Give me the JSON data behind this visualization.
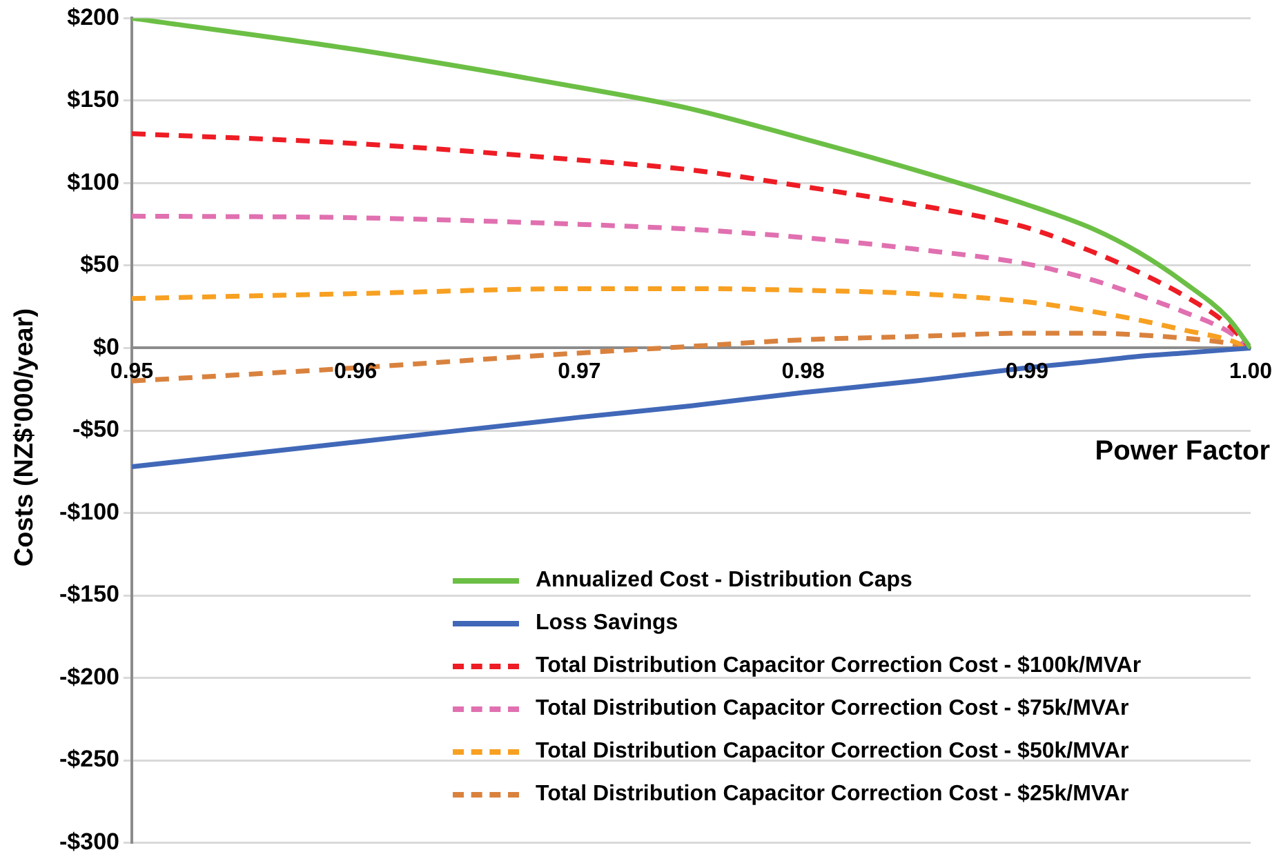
{
  "chart_data": {
    "type": "line",
    "xlabel": "Power Factor",
    "ylabel": "Costs (NZ$'000/year)",
    "x": [
      0.95,
      0.96,
      0.97,
      0.975,
      0.98,
      0.985,
      0.99,
      0.993,
      0.995,
      0.997,
      0.999,
      1.0
    ],
    "xlim": [
      0.95,
      1.0
    ],
    "xticks": [
      0.95,
      0.96,
      0.97,
      0.98,
      0.99,
      {
        "value": 1.0,
        "label": "1.00"
      }
    ],
    "ylim": [
      -300,
      200
    ],
    "yticks": [
      {
        "value": -300,
        "label": "-$300"
      },
      {
        "value": -250,
        "label": "-$250"
      },
      {
        "value": -200,
        "label": "-$200"
      },
      {
        "value": -150,
        "label": "-$150"
      },
      {
        "value": -100,
        "label": "-$100"
      },
      {
        "value": -50,
        "label": "-$50"
      },
      {
        "value": 0,
        "label": "$0"
      },
      {
        "value": 50,
        "label": "$50"
      },
      {
        "value": 100,
        "label": "$100"
      },
      {
        "value": 150,
        "label": "$150"
      },
      {
        "value": 200,
        "label": "$200"
      }
    ],
    "grid": "y",
    "legend": "bottom right",
    "marker": "none",
    "series": [
      {
        "name": "Annualized Cost - Distribution Caps",
        "color": "#6cbf45",
        "line_style": "solid",
        "values": [
          200,
          181,
          158,
          145,
          127,
          108,
          87,
          72,
          58,
          40,
          18,
          0
        ]
      },
      {
        "name": "Loss Savings",
        "color": "#4168b8",
        "line_style": "solid",
        "values": [
          -72,
          -57,
          -42,
          -35,
          -27,
          -20,
          -12,
          -8,
          -5,
          -3,
          -1,
          0
        ]
      },
      {
        "name": "Total Distribution Capacitor Correction Cost - $100k/MVAr",
        "color": "#ee1c24",
        "line_style": "dashed",
        "values": [
          130,
          124,
          114,
          108,
          98,
          87,
          73,
          58,
          46,
          32,
          14,
          0
        ]
      },
      {
        "name": "Total Distribution Capacitor Correction Cost - $75k/MVAr",
        "color": "#e070b0",
        "line_style": "dashed",
        "values": [
          80,
          79,
          75,
          72,
          67,
          60,
          51,
          41,
          32,
          22,
          10,
          0
        ]
      },
      {
        "name": "Total Distribution Capacitor Correction Cost - $50k/MVAr",
        "color": "#f7a021",
        "line_style": "dashed",
        "values": [
          30,
          33,
          36,
          36,
          35,
          33,
          28,
          22,
          17,
          11,
          5,
          0
        ]
      },
      {
        "name": "Total Distribution Capacitor Correction Cost - $25k/MVAr",
        "color": "#d9823e",
        "line_style": "dashed",
        "values": [
          -20,
          -12,
          -3,
          1,
          5,
          7,
          9,
          9,
          8,
          6,
          3,
          0
        ]
      }
    ]
  }
}
